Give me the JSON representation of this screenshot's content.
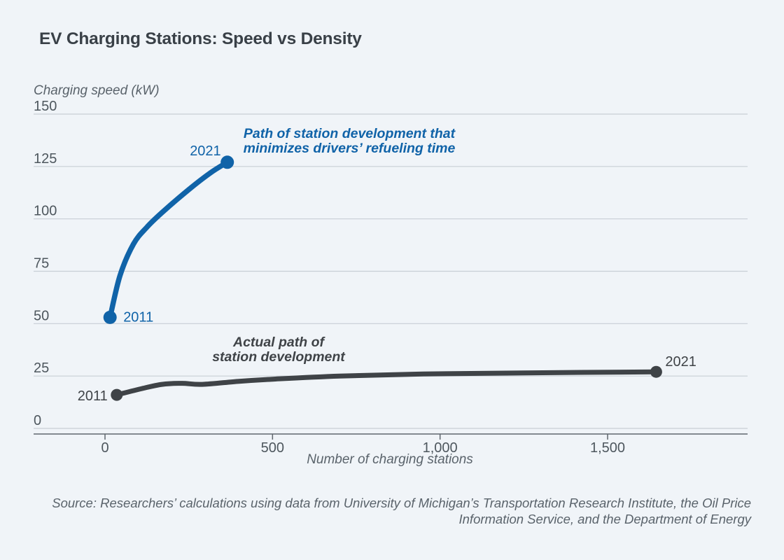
{
  "page": {
    "source_lines": [
      "Source: Researchers’ calculations using data from University of Michigan’s Transportation Research Institute, the Oil Price",
      "Information Service, and the Department of Energy"
    ]
  },
  "colors": {
    "background": "#f0f4f8",
    "optimal_blue": "#1063a8",
    "actual_dark": "#3f4347",
    "gridline": "#c8ced5",
    "axis_line": "#5f666d",
    "title_text": "#394047",
    "tick_text": "#4e575e",
    "muted_text": "#5a636b"
  },
  "chart_data": {
    "type": "line",
    "title": "EV Charging Stations: Speed vs Density",
    "xlabel": "Number of charging stations",
    "ylabel": "Charging speed (kW)",
    "ylim": [
      0,
      150
    ],
    "grid": "horizontal",
    "legend": "none (inline annotations)",
    "x_ticks": {
      "values": [
        0,
        500,
        1000,
        1500
      ],
      "labels": [
        "0",
        "500",
        "1,000",
        "1,500"
      ]
    },
    "y_ticks": {
      "values": [
        0,
        25,
        50,
        75,
        100,
        125,
        150
      ],
      "labels": [
        "0",
        "25",
        "50",
        "75",
        "100",
        "125",
        "150"
      ]
    },
    "series": [
      {
        "id": "actual",
        "name": "Actual path of station development",
        "annotation_lines": [
          "Actual path of",
          "station development"
        ],
        "color_key": "actual_dark",
        "start_label": "2011",
        "end_label": "2021",
        "points": [
          [
            35,
            16
          ],
          [
            110,
            19
          ],
          [
            170,
            21
          ],
          [
            230,
            21.5
          ],
          [
            290,
            21
          ],
          [
            400,
            22.5
          ],
          [
            500,
            23.5
          ],
          [
            700,
            25
          ],
          [
            950,
            26
          ],
          [
            1250,
            26.5
          ],
          [
            1645,
            27
          ]
        ]
      },
      {
        "id": "optimal",
        "name": "Path of station development that minimizes drivers’ refueling time",
        "annotation_lines": [
          "Path of station development that",
          "minimizes drivers’ refueling time"
        ],
        "color_key": "optimal_blue",
        "start_label": "2011",
        "end_label": "2021",
        "points": [
          [
            15,
            53
          ],
          [
            45,
            73
          ],
          [
            85,
            88
          ],
          [
            125,
            96
          ],
          [
            170,
            103
          ],
          [
            250,
            114
          ],
          [
            315,
            122
          ],
          [
            365,
            127
          ]
        ]
      }
    ]
  }
}
